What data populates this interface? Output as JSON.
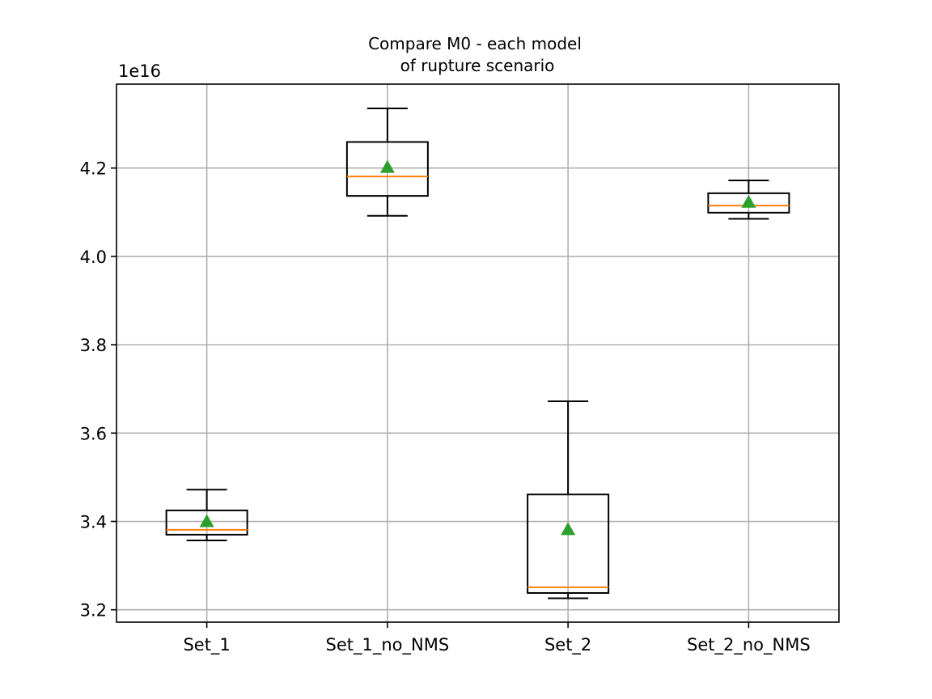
{
  "chart_data": {
    "type": "box",
    "title_lines": [
      "Compare M0 - each model",
      "of rupture scenario"
    ],
    "offset_label": "1e16",
    "categories": [
      "Set_1",
      "Set_1_no_NMS",
      "Set_2",
      "Set_2_no_NMS"
    ],
    "boxes": [
      {
        "whisker_low": 3.357,
        "q1": 3.37,
        "median": 3.381,
        "q3": 3.425,
        "whisker_high": 3.472,
        "mean": 3.4
      },
      {
        "whisker_low": 4.092,
        "q1": 4.137,
        "median": 4.181,
        "q3": 4.259,
        "whisker_high": 4.335,
        "mean": 4.202
      },
      {
        "whisker_low": 3.226,
        "q1": 3.238,
        "median": 3.251,
        "q3": 3.461,
        "whisker_high": 3.672,
        "mean": 3.382
      },
      {
        "whisker_low": 4.085,
        "q1": 4.099,
        "median": 4.115,
        "q3": 4.143,
        "whisker_high": 4.172,
        "mean": 4.123
      }
    ],
    "ylim": [
      3.172,
      4.39
    ],
    "yticks": [
      3.2,
      3.4,
      3.6,
      3.8,
      4.0,
      4.2
    ],
    "ytick_labels": [
      "3.2",
      "3.4",
      "3.6",
      "3.8",
      "4.0",
      "4.2"
    ],
    "grid": true,
    "colors": {
      "box": "#000000",
      "median": "#ff7f0e",
      "mean": "#2ca02c",
      "grid": "#b0b0b0"
    }
  }
}
